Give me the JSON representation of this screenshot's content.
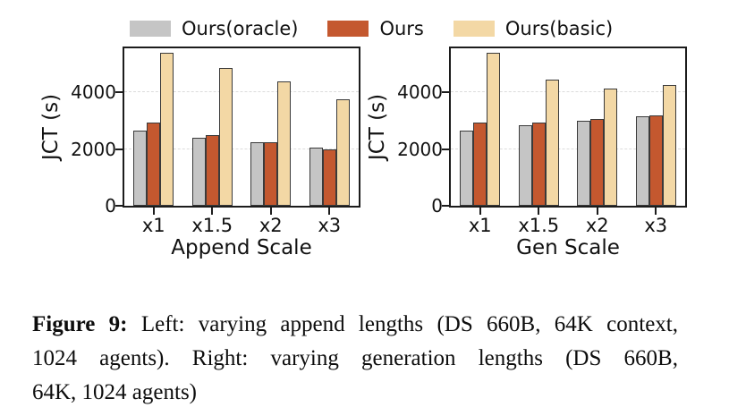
{
  "colors": {
    "oracle": "#c5c5c5",
    "ours": "#c4582f",
    "basic": "#f3d8a5",
    "bar_border": "#3a3a3a",
    "spine": "#1c1c1c",
    "grid": "#dcdcdc"
  },
  "legend": {
    "items": [
      {
        "label": "Ours(oracle)",
        "color_key": "oracle"
      },
      {
        "label": "Ours",
        "color_key": "ours"
      },
      {
        "label": "Ours(basic)",
        "color_key": "basic"
      }
    ]
  },
  "chart_data": [
    {
      "type": "bar",
      "title": "",
      "xlabel": "Append Scale",
      "ylabel": "JCT (s)",
      "categories": [
        "x1",
        "x1.5",
        "x2",
        "x3"
      ],
      "series": [
        {
          "name": "Ours(oracle)",
          "color_key": "oracle",
          "values": [
            2650,
            2400,
            2250,
            2050
          ]
        },
        {
          "name": "Ours",
          "color_key": "ours",
          "values": [
            2950,
            2500,
            2250,
            1980
          ]
        },
        {
          "name": "Ours(basic)",
          "color_key": "basic",
          "values": [
            5400,
            4850,
            4400,
            3750
          ]
        }
      ],
      "ylim": [
        0,
        5560
      ],
      "yticks": [
        0,
        2000,
        4000
      ],
      "grid": "dashed-horizontal",
      "legend_position": "top"
    },
    {
      "type": "bar",
      "title": "",
      "xlabel": "Gen Scale",
      "ylabel": "JCT (s)",
      "categories": [
        "x1",
        "x1.5",
        "x2",
        "x3"
      ],
      "series": [
        {
          "name": "Ours(oracle)",
          "color_key": "oracle",
          "values": [
            2650,
            2850,
            3000,
            3150
          ]
        },
        {
          "name": "Ours",
          "color_key": "ours",
          "values": [
            2950,
            2950,
            3050,
            3200
          ]
        },
        {
          "name": "Ours(basic)",
          "color_key": "basic",
          "values": [
            5400,
            4450,
            4150,
            4250
          ]
        }
      ],
      "ylim": [
        0,
        5560
      ],
      "yticks": [
        0,
        2000,
        4000
      ],
      "grid": "dashed-horizontal",
      "legend_position": "top"
    }
  ],
  "caption": {
    "label": "Figure 9:",
    "lines": [
      " Left: varying append lengths (DS 660B, 64K context,",
      "1024 agents). Right: varying generation lengths (DS 660B,",
      "64K, 1024 agents)"
    ]
  }
}
